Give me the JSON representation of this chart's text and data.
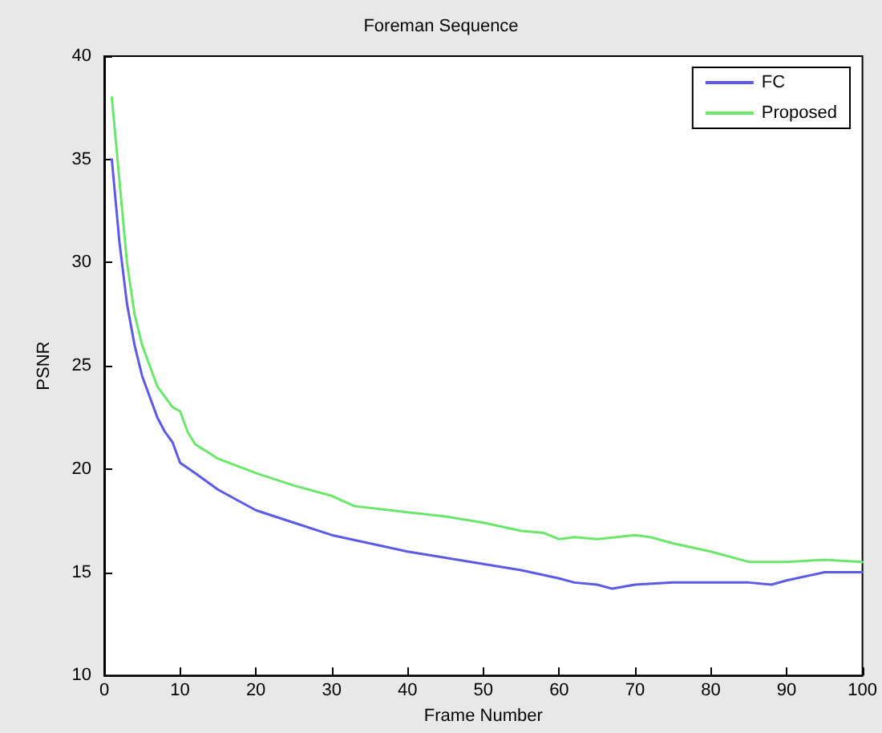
{
  "chart_data": {
    "type": "line",
    "title": "Foreman Sequence",
    "xlabel": "Frame Number",
    "ylabel": "PSNR",
    "xlim": [
      0,
      100
    ],
    "xticks": [
      0,
      10,
      20,
      30,
      40,
      50,
      60,
      70,
      80,
      90,
      100
    ],
    "ylim": [
      10,
      40
    ],
    "yticks": [
      10,
      15,
      20,
      25,
      30,
      35,
      40
    ],
    "grid": false,
    "legend": "top right",
    "marker": "none",
    "line_style": "solid",
    "series": [
      {
        "name": "FC",
        "color": "#5a5ae6",
        "x": [
          1,
          2,
          3,
          4,
          5,
          6,
          7,
          8,
          9,
          10,
          12,
          15,
          20,
          25,
          30,
          35,
          40,
          45,
          50,
          55,
          60,
          62,
          65,
          67,
          70,
          75,
          80,
          85,
          88,
          90,
          95,
          100
        ],
        "values": [
          35,
          31,
          28,
          26,
          24.5,
          23.5,
          22.5,
          21.8,
          21.3,
          20.3,
          19.8,
          19,
          18,
          17.4,
          16.8,
          16.4,
          16,
          15.7,
          15.4,
          15.1,
          14.7,
          14.5,
          14.4,
          14.2,
          14.4,
          14.5,
          14.5,
          14.5,
          14.4,
          14.6,
          15,
          15
        ]
      },
      {
        "name": "Proposed",
        "color": "#6ae66a",
        "x": [
          1,
          2,
          3,
          4,
          5,
          6,
          7,
          8,
          9,
          10,
          11,
          12,
          15,
          20,
          25,
          30,
          33,
          40,
          45,
          50,
          55,
          58,
          60,
          62,
          65,
          70,
          72,
          75,
          80,
          85,
          90,
          95,
          100
        ],
        "values": [
          38,
          34,
          30,
          27.5,
          26,
          25,
          24,
          23.5,
          23,
          22.8,
          21.8,
          21.2,
          20.5,
          19.8,
          19.2,
          18.7,
          18.2,
          17.9,
          17.7,
          17.4,
          17,
          16.9,
          16.6,
          16.7,
          16.6,
          16.8,
          16.7,
          16.4,
          16,
          15.5,
          15.5,
          15.6,
          15.5
        ]
      }
    ]
  }
}
